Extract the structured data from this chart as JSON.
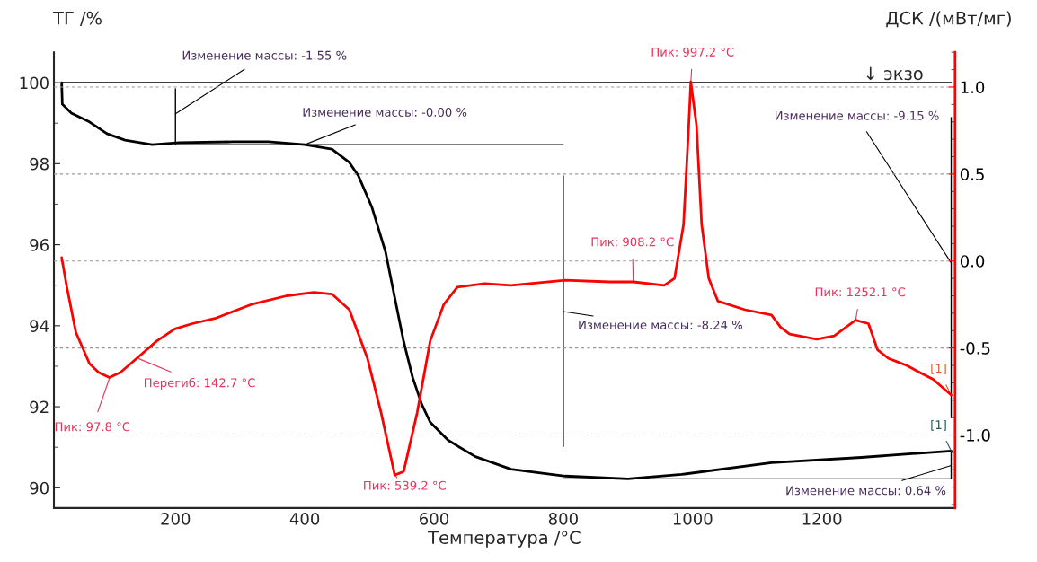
{
  "chart_data": {
    "type": "line",
    "xlabel": "Температура /°C",
    "ylabel": "ТГ /%",
    "y2label": "ДСК /(мВт/мг)",
    "xlim": [
      12,
      1406
    ],
    "xticks": [
      200,
      400,
      600,
      800,
      1000,
      1200
    ],
    "ylim": [
      89.5,
      100.75
    ],
    "yticks": [
      90,
      92,
      94,
      96,
      98,
      100
    ],
    "y2lim": [
      -1.42,
      1.2
    ],
    "y2ticks": [
      {
        "value": -1,
        "label": "-1.0"
      },
      -0.5,
      {
        "value": 0,
        "label": "0.0"
      },
      0.5,
      {
        "value": 1,
        "label": "1.0"
      }
    ],
    "grid": "y",
    "marker": "none",
    "line_style": "solid",
    "series": [
      {
        "color": "#000000",
        "x": [
          24,
          25,
          39,
          67,
          94,
          122,
          164,
          206,
          289,
          344,
          400,
          442,
          469,
          483,
          504,
          525,
          539,
          553,
          567,
          581,
          594,
          622,
          664,
          719,
          803,
          900,
          983,
          1122,
          1261,
          1400
        ],
        "values": [
          100.0,
          99.47,
          99.25,
          99.03,
          98.74,
          98.58,
          98.47,
          98.52,
          98.54,
          98.54,
          98.47,
          98.36,
          98.03,
          97.7,
          96.92,
          95.82,
          94.71,
          93.61,
          92.72,
          92.06,
          91.62,
          91.17,
          90.77,
          90.46,
          90.29,
          90.22,
          90.33,
          90.62,
          90.75,
          90.91
        ]
      },
      {
        "color": "#ff0000",
        "axis": "y2",
        "x": [
          24,
          32,
          46,
          67,
          81,
          97.8,
          115,
          140,
          171,
          199,
          226,
          261,
          317,
          372,
          414,
          442,
          469,
          497,
          518,
          539.2,
          553,
          574,
          594,
          615,
          636,
          657,
          678,
          719,
          803,
          872,
          908.2,
          956,
          972,
          986,
          994,
          997.2,
          1006,
          1014,
          1025,
          1039,
          1081,
          1122,
          1136,
          1150,
          1192,
          1219,
          1252.1,
          1272,
          1286,
          1303,
          1317,
          1331,
          1351,
          1372,
          1400
        ],
        "values": [
          0.02,
          -0.15,
          -0.41,
          -0.59,
          -0.64,
          -0.67,
          -0.64,
          -0.56,
          -0.46,
          -0.39,
          -0.36,
          -0.33,
          -0.25,
          -0.2,
          -0.18,
          -0.19,
          -0.28,
          -0.56,
          -0.87,
          -1.23,
          -1.21,
          -0.87,
          -0.46,
          -0.25,
          -0.15,
          -0.14,
          -0.13,
          -0.14,
          -0.11,
          -0.12,
          -0.12,
          -0.14,
          -0.1,
          0.21,
          0.78,
          1.03,
          0.78,
          0.21,
          -0.1,
          -0.23,
          -0.28,
          -0.31,
          -0.38,
          -0.42,
          -0.45,
          -0.43,
          -0.34,
          -0.36,
          -0.51,
          -0.56,
          -0.58,
          -0.6,
          -0.64,
          -0.68,
          -0.77
        ]
      },
      {
        "color": "#000000",
        "x": [
          24,
          1400
        ],
        "values": [
          100.0,
          100.0
        ]
      },
      {
        "color": "#000000",
        "x": [
          200,
          800
        ],
        "values": [
          98.47,
          98.47
        ]
      },
      {
        "color": "#000000",
        "x": [
          800,
          1400
        ],
        "values": [
          90.22,
          90.22
        ]
      },
      {
        "color": "#000000",
        "x": [
          200,
          200
        ],
        "values": [
          99.85,
          98.47
        ]
      },
      {
        "color": "#000000",
        "x": [
          800,
          800
        ],
        "values": [
          97.7,
          91.02
        ]
      },
      {
        "color": "#000000",
        "x": [
          1400,
          1400
        ],
        "values": [
          99.14,
          91.73
        ]
      },
      {
        "color": "#000000",
        "x": [
          1400,
          1400
        ],
        "values": [
          90.91,
          90.22
        ]
      }
    ],
    "annotations": [
      {
        "text": "Изменение массы: -1.55 %",
        "x": 200,
        "y": 99.23
      },
      {
        "text": "Изменение массы: -0.00 %",
        "x": 400,
        "y": 98.47
      },
      {
        "text": "Изменение массы: -8.24 %",
        "x": 800,
        "y": 94.35
      },
      {
        "text": "Изменение массы: -9.15 %",
        "x": 1400,
        "y": 95.55
      },
      {
        "text": "Изменение массы: 0.64 %",
        "x": 1400,
        "y": 90.55
      },
      {
        "text": "Пик: 997.2 °C",
        "x": 997.2,
        "y": 100.0
      },
      {
        "text": "Пик: 908.2 °C",
        "x": 908.2,
        "y": 95.07
      },
      {
        "text": "Пик: 1252.1 °C",
        "x": 1252.1,
        "y": 94.12
      },
      {
        "text": "Пик: 97.8 °C",
        "x": 97.8,
        "y": 92.7
      },
      {
        "text": "Перегиб: 142.7 °C",
        "x": 142.7,
        "y": 93.19
      },
      {
        "text": "Пик: 539.2 °C",
        "x": 539.2,
        "y": 90.32
      },
      {
        "text": "[1]",
        "x": 1400,
        "y": 92.28
      },
      {
        "text": "[1]",
        "x": 1400,
        "y": 90.91
      },
      "↓ экзо"
    ]
  }
}
